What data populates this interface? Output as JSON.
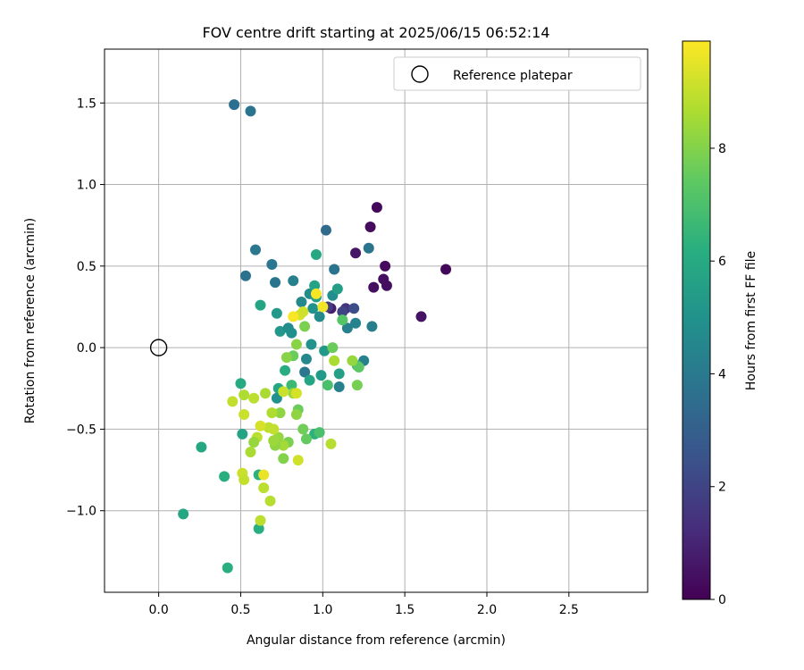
{
  "chart_data": {
    "type": "scatter",
    "title": "FOV centre drift starting at 2025/06/15 06:52:14",
    "xlabel": "Angular distance from reference (arcmin)",
    "ylabel": "Rotation from reference (arcmin)",
    "xlim": [
      -0.33,
      2.98
    ],
    "ylim": [
      -1.5,
      1.83
    ],
    "xticks": [
      "0.0",
      "0.5",
      "1.0",
      "1.5",
      "2.0",
      "2.5"
    ],
    "yticks": [
      "−1.0",
      "−0.5",
      "0.0",
      "0.5",
      "1.0",
      "1.5"
    ],
    "grid": true,
    "legend": {
      "placement": "top-right",
      "entries": [
        "Reference platepar"
      ]
    },
    "reference_point": {
      "x": 0.0,
      "y": 0.0
    },
    "colorbar": {
      "label": "Hours from first FF file",
      "range": [
        0,
        9.9
      ],
      "ticks": [
        "0",
        "2",
        "4",
        "6",
        "8"
      ],
      "colormap": "viridis"
    },
    "points": [
      [
        1.33,
        0.86,
        0.2
      ],
      [
        1.29,
        0.74,
        0.3
      ],
      [
        1.75,
        0.48,
        0.2
      ],
      [
        1.38,
        0.5,
        0.3
      ],
      [
        1.37,
        0.42,
        0.4
      ],
      [
        1.39,
        0.38,
        0.4
      ],
      [
        1.31,
        0.37,
        0.4
      ],
      [
        1.6,
        0.19,
        0.5
      ],
      [
        1.2,
        0.58,
        0.6
      ],
      [
        1.05,
        0.24,
        0.8
      ],
      [
        1.14,
        0.24,
        1.5
      ],
      [
        1.19,
        0.24,
        2.3
      ],
      [
        1.12,
        0.22,
        2.0
      ],
      [
        1.03,
        0.25,
        1.8
      ],
      [
        0.46,
        1.49,
        3.6
      ],
      [
        0.56,
        1.45,
        3.8
      ],
      [
        0.59,
        0.6,
        3.9
      ],
      [
        0.53,
        0.44,
        3.7
      ],
      [
        0.69,
        0.51,
        3.9
      ],
      [
        0.71,
        0.4,
        3.8
      ],
      [
        0.82,
        0.41,
        4.3
      ],
      [
        1.02,
        0.72,
        3.4
      ],
      [
        1.07,
        0.48,
        3.8
      ],
      [
        1.28,
        0.61,
        3.8
      ],
      [
        1.3,
        0.13,
        4.2
      ],
      [
        1.2,
        0.15,
        4.4
      ],
      [
        1.15,
        0.12,
        4.3
      ],
      [
        1.25,
        -0.08,
        4.3
      ],
      [
        1.1,
        -0.24,
        4.3
      ],
      [
        0.89,
        -0.15,
        3.9
      ],
      [
        0.9,
        -0.07,
        4.6
      ],
      [
        0.93,
        0.02,
        5.0
      ],
      [
        0.98,
        0.19,
        4.7
      ],
      [
        0.72,
        0.21,
        5.3
      ],
      [
        0.74,
        0.1,
        5.2
      ],
      [
        0.79,
        0.12,
        4.8
      ],
      [
        0.81,
        0.09,
        4.9
      ],
      [
        0.87,
        0.28,
        4.6
      ],
      [
        0.92,
        0.33,
        4.7
      ],
      [
        0.94,
        0.24,
        5.0
      ],
      [
        0.96,
        0.31,
        5.6
      ],
      [
        1.06,
        0.32,
        4.9
      ],
      [
        1.09,
        0.36,
        5.5
      ],
      [
        0.62,
        0.26,
        5.7
      ],
      [
        0.96,
        0.57,
        5.9
      ],
      [
        0.95,
        0.38,
        5.7
      ],
      [
        1.01,
        -0.02,
        5.3
      ],
      [
        0.99,
        -0.17,
        5.3
      ],
      [
        1.1,
        -0.16,
        5.6
      ],
      [
        1.12,
        0.17,
        7.2
      ],
      [
        1.21,
        -0.11,
        6.6
      ],
      [
        1.22,
        -0.12,
        7.4
      ],
      [
        0.77,
        -0.14,
        6.1
      ],
      [
        0.81,
        -0.23,
        6.7
      ],
      [
        0.73,
        -0.25,
        5.9
      ],
      [
        0.72,
        -0.31,
        5.0
      ],
      [
        0.92,
        -0.2,
        5.8
      ],
      [
        1.03,
        -0.23,
        7.0
      ],
      [
        0.5,
        -0.22,
        6.0
      ],
      [
        0.51,
        -0.53,
        5.7
      ],
      [
        0.26,
        -0.61,
        5.9
      ],
      [
        0.15,
        -1.02,
        5.9
      ],
      [
        0.4,
        -0.79,
        6.2
      ],
      [
        0.42,
        -1.35,
        6.2
      ],
      [
        0.61,
        -0.78,
        6.3
      ],
      [
        0.61,
        -1.11,
        6.2
      ],
      [
        0.95,
        -0.53,
        6.3
      ],
      [
        0.98,
        -0.52,
        7.0
      ],
      [
        0.88,
        -0.5,
        7.7
      ],
      [
        0.9,
        -0.56,
        7.5
      ],
      [
        1.05,
        -0.59,
        8.8
      ],
      [
        1.21,
        -0.23,
        7.8
      ],
      [
        0.85,
        -0.38,
        7.6
      ],
      [
        0.82,
        -0.05,
        7.6
      ],
      [
        0.84,
        0.02,
        8.1
      ],
      [
        0.78,
        -0.06,
        8.1
      ],
      [
        0.89,
        0.13,
        7.9
      ],
      [
        1.06,
        0.0,
        7.6
      ],
      [
        1.07,
        -0.08,
        8.6
      ],
      [
        1.18,
        -0.08,
        8.3
      ],
      [
        0.82,
        -0.28,
        8.4
      ],
      [
        0.84,
        -0.41,
        8.2
      ],
      [
        0.79,
        -0.58,
        7.9
      ],
      [
        0.76,
        -0.6,
        8.5
      ],
      [
        0.73,
        -0.55,
        8.3
      ],
      [
        0.76,
        -0.68,
        8.0
      ],
      [
        0.74,
        -0.4,
        8.2
      ],
      [
        0.69,
        -0.4,
        8.7
      ],
      [
        0.71,
        -0.6,
        8.2
      ],
      [
        0.7,
        -0.57,
        8.4
      ],
      [
        0.67,
        -0.49,
        8.9
      ],
      [
        0.7,
        -0.5,
        9.0
      ],
      [
        0.62,
        -0.48,
        9.3
      ],
      [
        0.6,
        -0.55,
        8.9
      ],
      [
        0.58,
        -0.58,
        8.3
      ],
      [
        0.56,
        -0.64,
        8.6
      ],
      [
        0.52,
        -0.41,
        9.1
      ],
      [
        0.52,
        -0.29,
        8.7
      ],
      [
        0.58,
        -0.31,
        8.9
      ],
      [
        0.65,
        -0.28,
        8.6
      ],
      [
        0.45,
        -0.33,
        9.0
      ],
      [
        0.51,
        -0.77,
        9.1
      ],
      [
        0.52,
        -0.81,
        9.0
      ],
      [
        0.64,
        -0.78,
        9.6
      ],
      [
        0.64,
        -0.86,
        8.9
      ],
      [
        0.68,
        -0.94,
        8.8
      ],
      [
        0.62,
        -1.06,
        8.9
      ],
      [
        0.85,
        -0.69,
        9.2
      ],
      [
        0.84,
        -0.28,
        9.3
      ],
      [
        0.76,
        -0.27,
        9.1
      ],
      [
        0.86,
        0.2,
        9.3
      ],
      [
        0.88,
        0.22,
        9.2
      ],
      [
        0.82,
        0.19,
        9.8
      ],
      [
        0.96,
        0.33,
        9.8
      ],
      [
        1.0,
        0.25,
        9.7
      ]
    ]
  }
}
